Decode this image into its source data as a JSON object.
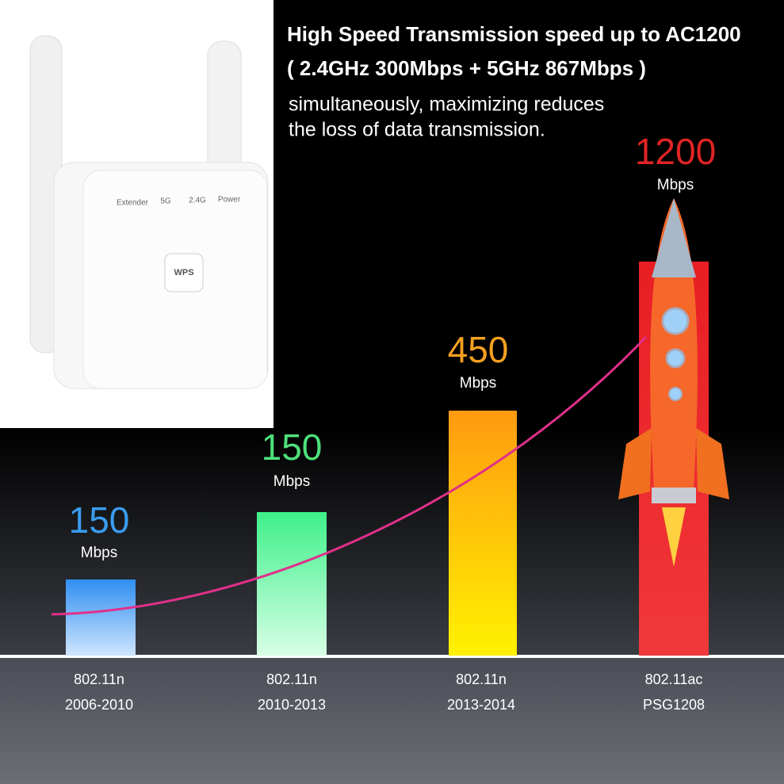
{
  "header": {
    "lines": [
      "High Speed Transmission speed up to AC1200",
      "( 2.4GHz 300Mbps + 5GHz 867Mbps )",
      "simultaneously, maximizing reduces",
      "the loss of data transmission."
    ]
  },
  "device": {
    "indicators": [
      "Extender",
      "5G",
      "2.4G",
      "Power"
    ],
    "button": "WPS"
  },
  "bars": [
    {
      "value": "150",
      "unit": "Mbps",
      "standard": "802.11n",
      "period": "2006-2010"
    },
    {
      "value": "150",
      "unit": "Mbps",
      "standard": "802.11n",
      "period": "2010-2013"
    },
    {
      "value": "450",
      "unit": "Mbps",
      "standard": "802.11n",
      "period": "2013-2014"
    },
    {
      "value": "1200",
      "unit": "Mbps",
      "standard": "802.11ac",
      "period": "PSG1208"
    }
  ]
}
